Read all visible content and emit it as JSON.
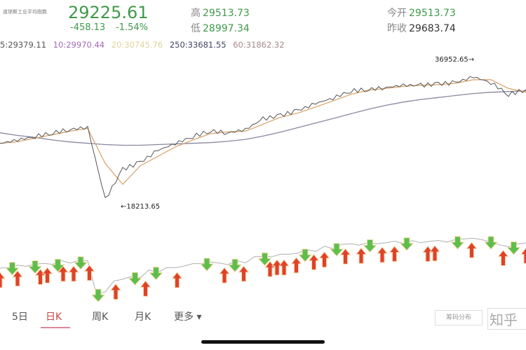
{
  "header": {
    "index_name": "道琼斯工业平均指数",
    "price": "29225.61",
    "change": "-458.13",
    "change_pct": "-1.54%",
    "high_label": "高",
    "high": "29513.73",
    "low_label": "低",
    "low": "28997.34",
    "open_label": "今开",
    "open": "29513.73",
    "prev_close_label": "昨收",
    "prev_close": "29683.74"
  },
  "ma_legend": [
    {
      "text": "5:29379.11",
      "color": "#555555"
    },
    {
      "text": "10:29970.44",
      "color": "#a36ab8"
    },
    {
      "text": "20:30745.76",
      "color": "#e0d49a"
    },
    {
      "text": "250:33681.55",
      "color": "#444466"
    },
    {
      "text": "60:31862.32",
      "color": "#a58a8a"
    }
  ],
  "colors": {
    "up": "#e0412a",
    "down": "#5cbf4c",
    "price_line": "#555555",
    "ma_short": "#d9a066",
    "ma_long": "#8888a0",
    "indicator_line": "#b0b0b0"
  },
  "chart_data": {
    "type": "line",
    "ylim": [
      16600,
      38000
    ],
    "series": [
      {
        "values": [
          26773,
          27308,
          27843,
          28378,
          28913,
          29234,
          18213,
          22814,
          23884,
          25703,
          26773,
          27843,
          28699,
          28378,
          28913,
          30518,
          31053,
          31802,
          32872,
          33728,
          34798,
          35012,
          35333,
          35654,
          35654,
          35868,
          36082,
          36952.65,
          36082,
          34263,
          35012
        ]
      },
      {
        "values": [
          28400,
          28000,
          27700,
          27300,
          27000,
          26800,
          26600,
          26500,
          26500,
          26600,
          26700,
          26800,
          26900,
          27100,
          27400,
          27900,
          28500,
          29200,
          29900,
          30600,
          31300,
          32000,
          32600,
          33100,
          33500,
          33800,
          34100,
          34400,
          34600,
          34700,
          34800
        ]
      }
    ],
    "annotations": [
      {
        "text": "36952.65→",
        "value": 36952.65
      },
      {
        "text": "←18213.65",
        "value": 18213.65
      }
    ],
    "signals": [
      {
        "i": 0,
        "type": "buy"
      },
      {
        "i": 0.7,
        "type": "sell"
      },
      {
        "i": 1,
        "type": "buy"
      },
      {
        "i": 2,
        "type": "sell"
      },
      {
        "i": 2.3,
        "type": "buy"
      },
      {
        "i": 2.7,
        "type": "buy"
      },
      {
        "i": 3.3,
        "type": "sell"
      },
      {
        "i": 3.6,
        "type": "buy"
      },
      {
        "i": 4.2,
        "type": "buy"
      },
      {
        "i": 4.6,
        "type": "sell"
      },
      {
        "i": 5.1,
        "type": "buy"
      },
      {
        "i": 5.6,
        "type": "sell"
      },
      {
        "i": 6.6,
        "type": "buy"
      },
      {
        "i": 7.7,
        "type": "sell"
      },
      {
        "i": 8.3,
        "type": "buy"
      },
      {
        "i": 8.9,
        "type": "sell"
      },
      {
        "i": 10.1,
        "type": "buy"
      },
      {
        "i": 11.8,
        "type": "sell"
      },
      {
        "i": 12.8,
        "type": "buy"
      },
      {
        "i": 13.4,
        "type": "sell"
      },
      {
        "i": 13.9,
        "type": "buy"
      },
      {
        "i": 15.1,
        "type": "sell"
      },
      {
        "i": 15.4,
        "type": "buy"
      },
      {
        "i": 15.8,
        "type": "buy"
      },
      {
        "i": 16.2,
        "type": "buy"
      },
      {
        "i": 16.9,
        "type": "buy"
      },
      {
        "i": 17.4,
        "type": "sell"
      },
      {
        "i": 17.9,
        "type": "buy"
      },
      {
        "i": 18.5,
        "type": "buy"
      },
      {
        "i": 19.2,
        "type": "sell"
      },
      {
        "i": 19.7,
        "type": "buy"
      },
      {
        "i": 20.6,
        "type": "buy"
      },
      {
        "i": 21.1,
        "type": "sell"
      },
      {
        "i": 21.8,
        "type": "buy"
      },
      {
        "i": 22.5,
        "type": "buy"
      },
      {
        "i": 23.2,
        "type": "sell"
      },
      {
        "i": 24.4,
        "type": "buy"
      },
      {
        "i": 24.8,
        "type": "buy"
      },
      {
        "i": 26.1,
        "type": "sell"
      },
      {
        "i": 26.9,
        "type": "buy"
      },
      {
        "i": 28,
        "type": "sell"
      },
      {
        "i": 28.7,
        "type": "buy"
      },
      {
        "i": 29.3,
        "type": "sell"
      },
      {
        "i": 30,
        "type": "buy"
      }
    ]
  },
  "tabs": [
    {
      "label": "5日"
    },
    {
      "label": "日K"
    },
    {
      "label": "周K"
    },
    {
      "label": "月K"
    },
    {
      "label": "更多 ▾"
    }
  ],
  "badge": "筹码分布",
  "watermark": "知乎"
}
